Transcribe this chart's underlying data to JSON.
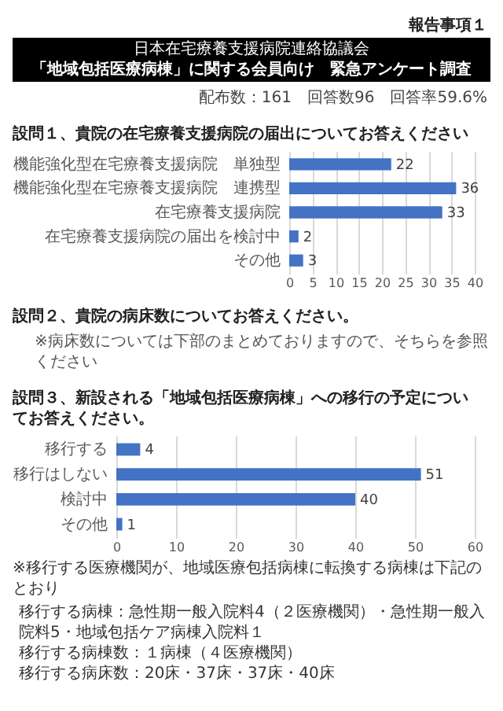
{
  "chart_data": [
    {
      "type": "other",
      "subtitle": "日本在宅療養支援病院連絡協議会",
      "title": "「地域包括医療病棟」に関する会員向け　緊急アンケート調査",
      "annotations": [
        "報告事項１",
        "配布数：161　回答数96　回答率59.6%"
      ]
    },
    {
      "type": "bar",
      "orientation": "horizontal",
      "title": "設問１、貴院の在宅療養支援病院の届出についてお答えください",
      "categories": [
        "機能強化型在宅療養支援病院　単独型",
        "機能強化型在宅療養支援病院　連携型",
        "在宅療養支援病院",
        "在宅療養支援病院の届出を検討中",
        "その他"
      ],
      "values": [
        22,
        36,
        33,
        2,
        3
      ],
      "color": "#4472c4",
      "xlim": [
        0,
        40
      ],
      "xticks": [
        0,
        5,
        10,
        15,
        20,
        25,
        30,
        35,
        40
      ],
      "grid": "x",
      "data_labels": true
    },
    {
      "type": "other",
      "title": "設問２、貴院の病床数についてお答えください。",
      "annotations": [
        "※病床数については下部のまとめておりますので、そちらを参照ください"
      ]
    },
    {
      "type": "bar",
      "orientation": "horizontal",
      "title": "設問３、新設される「地域包括医療病棟」への移行の予定についてお答えください。",
      "categories": [
        "移行する",
        "移行はしない",
        "検討中",
        "その他"
      ],
      "values": [
        4,
        51,
        40,
        1
      ],
      "color": "#4472c4",
      "xlim": [
        0,
        60
      ],
      "xticks": [
        0,
        10,
        20,
        30,
        40,
        50,
        60
      ],
      "grid": "x",
      "data_labels": true,
      "annotations": [
        "※移行する医療機関が、地域医療包括病棟に転換する病棟は下記のとおり",
        "移行する病棟：急性期一般入院料4（２医療機関）・急性期一般入院料5・地域包括ケア病棟入院料１",
        "移行する病棟数：１病棟（４医療機関）",
        "移行する病床数：20床・37床・37床・40床"
      ]
    }
  ]
}
